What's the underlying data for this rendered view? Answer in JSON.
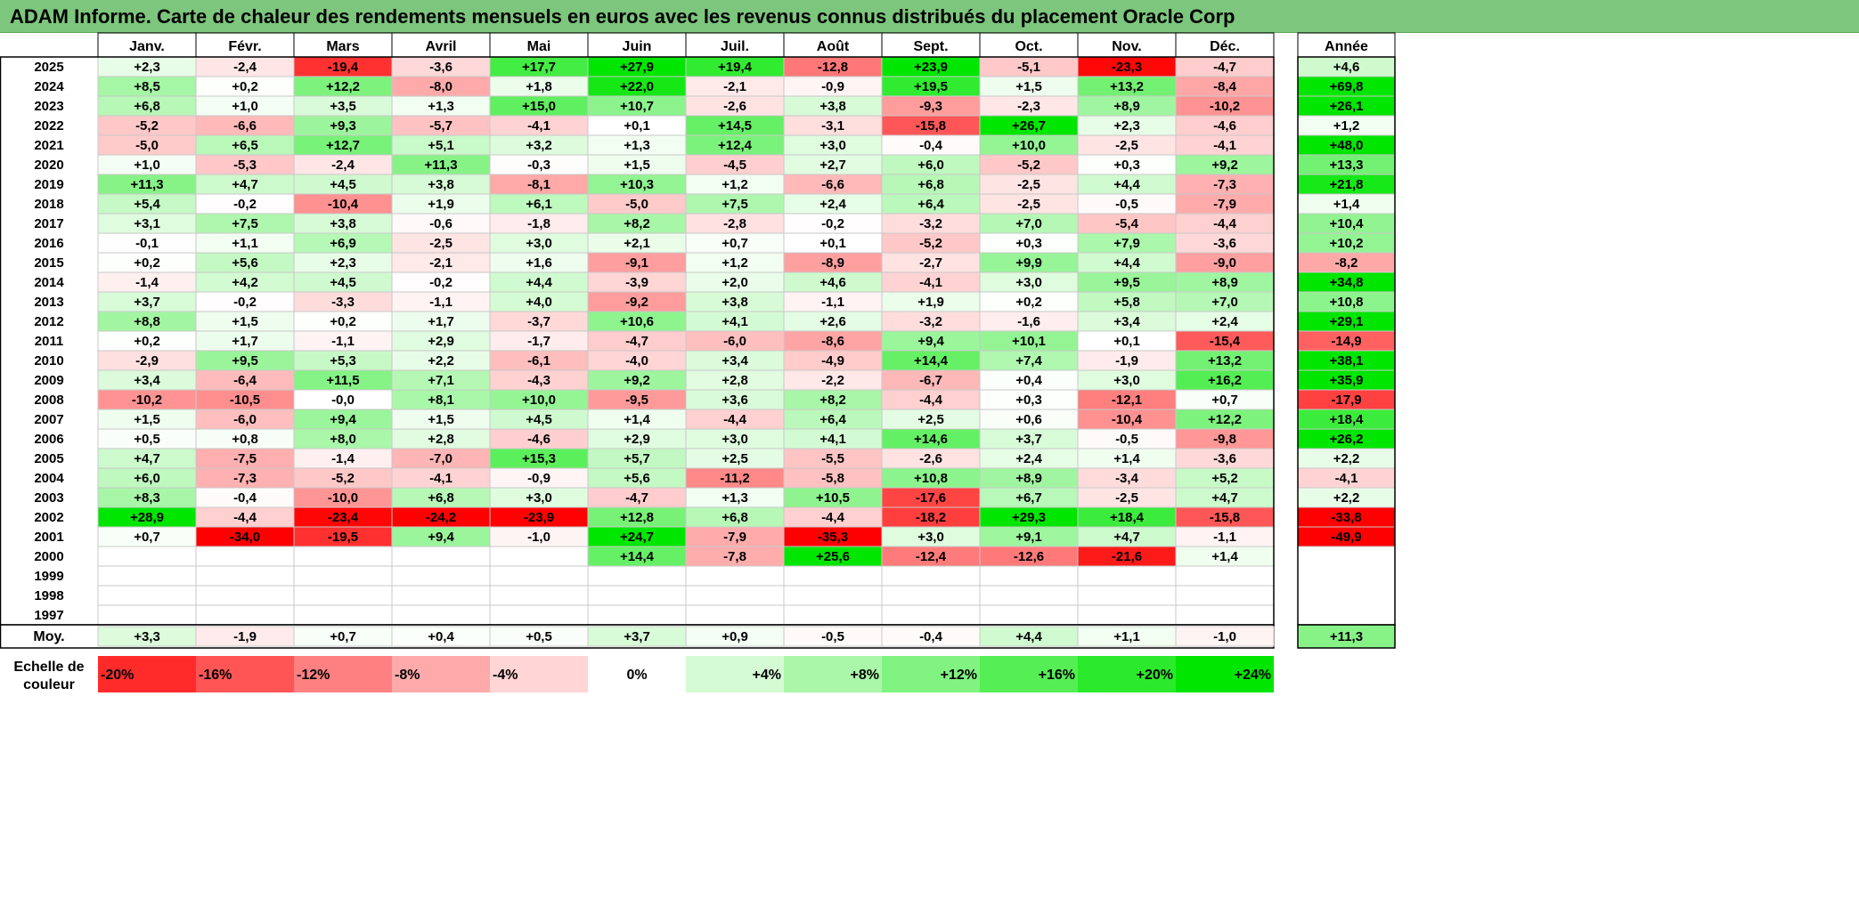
{
  "title": "ADAM Informe. Carte de chaleur des rendements mensuels en euros avec les revenus connus distribués du placement Oracle Corp",
  "chart_data": {
    "type": "heatmap",
    "title": "ADAM Informe. Carte de chaleur des rendements mensuels en euros avec les revenus connus distribués du placement Oracle Corp",
    "columns": [
      "Janv.",
      "Févr.",
      "Mars",
      "Avril",
      "Mai",
      "Juin",
      "Juil.",
      "Août",
      "Sept.",
      "Oct.",
      "Nov.",
      "Déc."
    ],
    "year_column_label": "Année",
    "average_row_label": "Moy.",
    "rows": [
      {
        "year": "2025",
        "values": [
          "+2,3",
          "-2,4",
          "-19,4",
          "-3,6",
          "+17,7",
          "+27,9",
          "+19,4",
          "-12,8",
          "+23,9",
          "-5,1",
          "-23,3",
          "-4,7"
        ],
        "annual": "+4,6"
      },
      {
        "year": "2024",
        "values": [
          "+8,5",
          "+0,2",
          "+12,2",
          "-8,0",
          "+1,8",
          "+22,0",
          "-2,1",
          "-0,9",
          "+19,5",
          "+1,5",
          "+13,2",
          "-8,4"
        ],
        "annual": "+69,8"
      },
      {
        "year": "2023",
        "values": [
          "+6,8",
          "+1,0",
          "+3,5",
          "+1,3",
          "+15,0",
          "+10,7",
          "-2,6",
          "+3,8",
          "-9,3",
          "-2,3",
          "+8,9",
          "-10,2"
        ],
        "annual": "+26,1"
      },
      {
        "year": "2022",
        "values": [
          "-5,2",
          "-6,6",
          "+9,3",
          "-5,7",
          "-4,1",
          "+0,1",
          "+14,5",
          "-3,1",
          "-15,8",
          "+26,7",
          "+2,3",
          "-4,6"
        ],
        "annual": "+1,2"
      },
      {
        "year": "2021",
        "values": [
          "-5,0",
          "+6,5",
          "+12,7",
          "+5,1",
          "+3,2",
          "+1,3",
          "+12,4",
          "+3,0",
          "-0,4",
          "+10,0",
          "-2,5",
          "-4,1"
        ],
        "annual": "+48,0"
      },
      {
        "year": "2020",
        "values": [
          "+1,0",
          "-5,3",
          "-2,4",
          "+11,3",
          "-0,3",
          "+1,5",
          "-4,5",
          "+2,7",
          "+6,0",
          "-5,2",
          "+0,3",
          "+9,2"
        ],
        "annual": "+13,3"
      },
      {
        "year": "2019",
        "values": [
          "+11,3",
          "+4,7",
          "+4,5",
          "+3,8",
          "-8,1",
          "+10,3",
          "+1,2",
          "-6,6",
          "+6,8",
          "-2,5",
          "+4,4",
          "-7,3"
        ],
        "annual": "+21,8"
      },
      {
        "year": "2018",
        "values": [
          "+5,4",
          "-0,2",
          "-10,4",
          "+1,9",
          "+6,1",
          "-5,0",
          "+7,5",
          "+2,4",
          "+6,4",
          "-2,5",
          "-0,5",
          "-7,9"
        ],
        "annual": "+1,4"
      },
      {
        "year": "2017",
        "values": [
          "+3,1",
          "+7,5",
          "+3,8",
          "-0,6",
          "-1,8",
          "+8,2",
          "-2,8",
          "-0,2",
          "-3,2",
          "+7,0",
          "-5,4",
          "-4,4"
        ],
        "annual": "+10,4"
      },
      {
        "year": "2016",
        "values": [
          "-0,1",
          "+1,1",
          "+6,9",
          "-2,5",
          "+3,0",
          "+2,1",
          "+0,7",
          "+0,1",
          "-5,2",
          "+0,3",
          "+7,9",
          "-3,6"
        ],
        "annual": "+10,2"
      },
      {
        "year": "2015",
        "values": [
          "+0,2",
          "+5,6",
          "+2,3",
          "-2,1",
          "+1,6",
          "-9,1",
          "+1,2",
          "-8,9",
          "-2,7",
          "+9,9",
          "+4,4",
          "-9,0"
        ],
        "annual": "-8,2"
      },
      {
        "year": "2014",
        "values": [
          "-1,4",
          "+4,2",
          "+4,5",
          "-0,2",
          "+4,4",
          "-3,9",
          "+2,0",
          "+4,6",
          "-4,1",
          "+3,0",
          "+9,5",
          "+8,9"
        ],
        "annual": "+34,8"
      },
      {
        "year": "2013",
        "values": [
          "+3,7",
          "-0,2",
          "-3,3",
          "-1,1",
          "+4,0",
          "-9,2",
          "+3,8",
          "-1,1",
          "+1,9",
          "+0,2",
          "+5,8",
          "+7,0"
        ],
        "annual": "+10,8"
      },
      {
        "year": "2012",
        "values": [
          "+8,8",
          "+1,5",
          "+0,2",
          "+1,7",
          "-3,7",
          "+10,6",
          "+4,1",
          "+2,6",
          "-3,2",
          "-1,6",
          "+3,4",
          "+2,4"
        ],
        "annual": "+29,1"
      },
      {
        "year": "2011",
        "values": [
          "+0,2",
          "+1,7",
          "-1,1",
          "+2,9",
          "-1,7",
          "-4,7",
          "-6,0",
          "-8,6",
          "+9,4",
          "+10,1",
          "+0,1",
          "-15,4"
        ],
        "annual": "-14,9"
      },
      {
        "year": "2010",
        "values": [
          "-2,9",
          "+9,5",
          "+5,3",
          "+2,2",
          "-6,1",
          "-4,0",
          "+3,4",
          "-4,9",
          "+14,4",
          "+7,4",
          "-1,9",
          "+13,2"
        ],
        "annual": "+38,1"
      },
      {
        "year": "2009",
        "values": [
          "+3,4",
          "-6,4",
          "+11,5",
          "+7,1",
          "-4,3",
          "+9,2",
          "+2,8",
          "-2,2",
          "-6,7",
          "+0,4",
          "+3,0",
          "+16,2"
        ],
        "annual": "+35,9"
      },
      {
        "year": "2008",
        "values": [
          "-10,2",
          "-10,5",
          "-0,0",
          "+8,1",
          "+10,0",
          "-9,5",
          "+3,6",
          "+8,2",
          "-4,4",
          "+0,3",
          "-12,1",
          "+0,7"
        ],
        "annual": "-17,9"
      },
      {
        "year": "2007",
        "values": [
          "+1,5",
          "-6,0",
          "+9,4",
          "+1,5",
          "+4,5",
          "+1,4",
          "-4,4",
          "+6,4",
          "+2,5",
          "+0,6",
          "-10,4",
          "+12,2"
        ],
        "annual": "+18,4"
      },
      {
        "year": "2006",
        "values": [
          "+0,5",
          "+0,8",
          "+8,0",
          "+2,8",
          "-4,6",
          "+2,9",
          "+3,0",
          "+4,1",
          "+14,6",
          "+3,7",
          "-0,5",
          "-9,8"
        ],
        "annual": "+26,2"
      },
      {
        "year": "2005",
        "values": [
          "+4,7",
          "-7,5",
          "-1,4",
          "-7,0",
          "+15,3",
          "+5,7",
          "+2,5",
          "-5,5",
          "-2,6",
          "+2,4",
          "+1,4",
          "-3,6"
        ],
        "annual": "+2,2"
      },
      {
        "year": "2004",
        "values": [
          "+6,0",
          "-7,3",
          "-5,2",
          "-4,1",
          "-0,9",
          "+5,6",
          "-11,2",
          "-5,8",
          "+10,8",
          "+8,9",
          "-3,4",
          "+5,2"
        ],
        "annual": "-4,1"
      },
      {
        "year": "2003",
        "values": [
          "+8,3",
          "-0,4",
          "-10,0",
          "+6,8",
          "+3,0",
          "-4,7",
          "+1,3",
          "+10,5",
          "-17,6",
          "+6,7",
          "-2,5",
          "+4,7"
        ],
        "annual": "+2,2"
      },
      {
        "year": "2002",
        "values": [
          "+28,9",
          "-4,4",
          "-23,4",
          "-24,2",
          "-23,9",
          "+12,8",
          "+6,8",
          "-4,4",
          "-18,2",
          "+29,3",
          "+18,4",
          "-15,8"
        ],
        "annual": "-33,8"
      },
      {
        "year": "2001",
        "values": [
          "+0,7",
          "-34,0",
          "-19,5",
          "+9,4",
          "-1,0",
          "+24,7",
          "-7,9",
          "-35,3",
          "+3,0",
          "+9,1",
          "+4,7",
          "-1,1"
        ],
        "annual": "-49,9"
      },
      {
        "year": "2000",
        "values": [
          "",
          "",
          "",
          "",
          "",
          "+14,4",
          "-7,8",
          "+25,6",
          "-12,4",
          "-12,6",
          "-21,6",
          "+1,4"
        ],
        "annual": ""
      },
      {
        "year": "1999",
        "values": [
          "",
          "",
          "",
          "",
          "",
          "",
          "",
          "",
          "",
          "",
          "",
          ""
        ],
        "annual": ""
      },
      {
        "year": "1998",
        "values": [
          "",
          "",
          "",
          "",
          "",
          "",
          "",
          "",
          "",
          "",
          "",
          ""
        ],
        "annual": ""
      },
      {
        "year": "1997",
        "values": [
          "",
          "",
          "",
          "",
          "",
          "",
          "",
          "",
          "",
          "",
          "",
          ""
        ],
        "annual": ""
      }
    ],
    "averages": {
      "values": [
        "+3,3",
        "-1,9",
        "+0,7",
        "+0,4",
        "+0,5",
        "+3,7",
        "+0,9",
        "-0,5",
        "-0,4",
        "+4,4",
        "+1,1",
        "-1,0"
      ],
      "annual": "+11,3"
    },
    "color_scale": {
      "label_line1": "Echelle de",
      "label_line2": "couleur",
      "steps": [
        {
          "label": "-20%",
          "value": -20
        },
        {
          "label": "-16%",
          "value": -16
        },
        {
          "label": "-12%",
          "value": -12
        },
        {
          "label": "-8%",
          "value": -8
        },
        {
          "label": "-4%",
          "value": -4
        },
        {
          "label": "0%",
          "value": 0
        },
        {
          "label": "+4%",
          "value": 4
        },
        {
          "label": "+8%",
          "value": 8
        },
        {
          "label": "+12%",
          "value": 12
        },
        {
          "label": "+16%",
          "value": 16
        },
        {
          "label": "+20%",
          "value": 20
        },
        {
          "label": "+24%",
          "value": 24
        }
      ]
    },
    "colors": {
      "negative": "#ff0000",
      "neutral": "#ffffff",
      "positive": "#00e600",
      "title_background": "#7dc67d"
    }
  }
}
